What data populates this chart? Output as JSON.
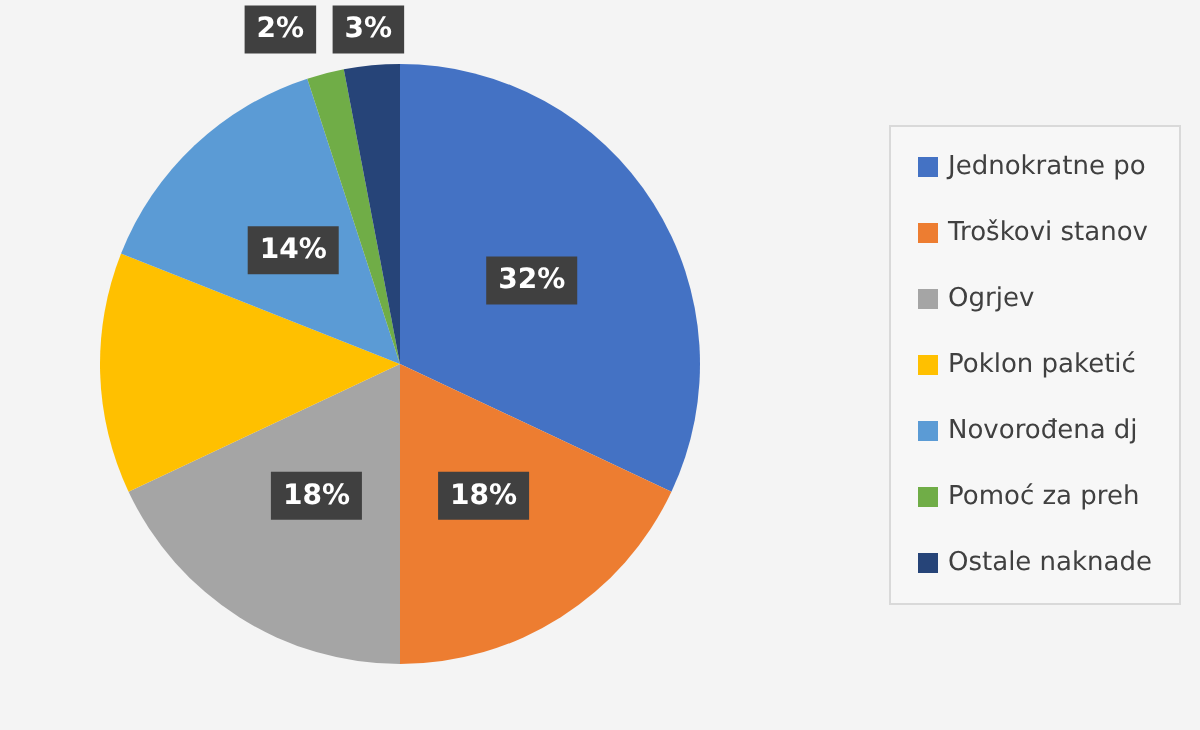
{
  "chart_data": {
    "type": "pie",
    "categories": [
      "Jednokratne po",
      "Troškovi stanov",
      "Ogrjev",
      "Poklon paketić",
      "Novorođena dj",
      "Pomoć za preh",
      "Ostale naknade"
    ],
    "values": [
      32,
      18,
      18,
      13,
      14,
      2,
      3
    ],
    "value_labels": [
      "32%",
      "18%",
      "18%",
      null,
      "14%",
      "2%",
      "3%"
    ],
    "colors": [
      "#4472c4",
      "#ed7d31",
      "#a5a5a5",
      "#ffc000",
      "#5b9bd5",
      "#70ad47",
      "#264478"
    ],
    "legend": "right"
  }
}
